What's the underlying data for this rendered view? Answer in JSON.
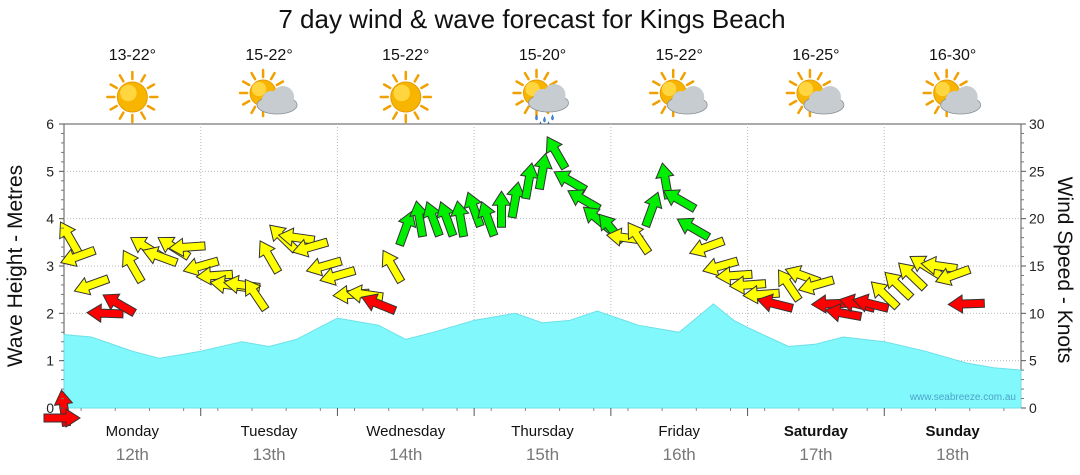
{
  "chart_data": {
    "type": "area",
    "title": "7 day wind & wave forecast for Kings Beach",
    "ylabel_left": "Wave Height - Metres",
    "ylabel_right": "Wind Speed - Knots",
    "ylim_left": [
      0,
      6
    ],
    "ylim_right": [
      0,
      30
    ],
    "yticks_left": [
      "0",
      "1",
      "2",
      "3",
      "4",
      "5",
      "6"
    ],
    "yticks_right": [
      "0",
      "5",
      "10",
      "15",
      "20",
      "25",
      "30"
    ],
    "credit": "www.seabreeze.com.au",
    "days": [
      {
        "name": "Monday",
        "date": "12th",
        "temp": "13-22°",
        "icon": "sunny-icon",
        "bold": false
      },
      {
        "name": "Tuesday",
        "date": "13th",
        "temp": "15-22°",
        "icon": "partly-cloudy-icon",
        "bold": false
      },
      {
        "name": "Wednesday",
        "date": "14th",
        "temp": "15-22°",
        "icon": "sunny-icon",
        "bold": false
      },
      {
        "name": "Thursday",
        "date": "15th",
        "temp": "15-20°",
        "icon": "rain-shower-icon",
        "bold": false
      },
      {
        "name": "Friday",
        "date": "16th",
        "temp": "15-22°",
        "icon": "partly-cloudy-icon",
        "bold": false
      },
      {
        "name": "Saturday",
        "date": "17th",
        "temp": "16-25°",
        "icon": "partly-cloudy-icon",
        "bold": true
      },
      {
        "name": "Sunday",
        "date": "18th",
        "temp": "16-30°",
        "icon": "partly-cloudy-icon",
        "bold": true
      }
    ],
    "colors": {
      "wave_fill": "#80f8fc",
      "low_wind": "#ff0000",
      "mid_wind": "#ffff00",
      "high_wind": "#00ee00",
      "arrow_stroke": "#333333"
    },
    "wave_series": {
      "name": "Wave Height",
      "x_days": [
        0,
        0.2,
        0.5,
        0.7,
        1.0,
        1.3,
        1.5,
        1.7,
        2.0,
        2.3,
        2.5,
        2.7,
        3.0,
        3.3,
        3.5,
        3.7,
        3.9,
        4.2,
        4.5,
        4.75,
        4.9,
        5.0,
        5.3,
        5.5,
        5.7,
        6.0,
        6.3,
        6.6,
        6.8,
        7.0
      ],
      "values": [
        1.55,
        1.5,
        1.2,
        1.05,
        1.2,
        1.4,
        1.3,
        1.45,
        1.9,
        1.75,
        1.45,
        1.6,
        1.85,
        2.0,
        1.8,
        1.85,
        2.05,
        1.75,
        1.6,
        2.2,
        1.85,
        1.7,
        1.3,
        1.35,
        1.5,
        1.4,
        1.2,
        0.95,
        0.85,
        0.8
      ]
    },
    "wind_series": {
      "name": "Wind Speed",
      "points": [
        [
          0.0,
          0
        ],
        [
          0.04,
          18
        ],
        [
          0.1,
          16
        ],
        [
          0.2,
          13
        ],
        [
          0.3,
          10
        ],
        [
          0.4,
          11
        ],
        [
          0.5,
          15
        ],
        [
          0.6,
          17
        ],
        [
          0.7,
          16
        ],
        [
          0.8,
          17
        ],
        [
          0.9,
          17
        ],
        [
          1.0,
          15
        ],
        [
          1.1,
          14
        ],
        [
          1.2,
          13
        ],
        [
          1.3,
          13
        ],
        [
          1.4,
          12
        ],
        [
          1.5,
          16
        ],
        [
          1.6,
          18
        ],
        [
          1.7,
          18
        ],
        [
          1.8,
          17
        ],
        [
          1.9,
          15
        ],
        [
          2.0,
          14
        ],
        [
          2.1,
          12
        ],
        [
          2.2,
          12
        ],
        [
          2.3,
          11
        ],
        [
          2.4,
          15
        ],
        [
          2.5,
          19
        ],
        [
          2.6,
          20
        ],
        [
          2.7,
          20
        ],
        [
          2.8,
          20
        ],
        [
          2.9,
          20
        ],
        [
          3.0,
          21
        ],
        [
          3.1,
          20
        ],
        [
          3.2,
          21
        ],
        [
          3.3,
          22
        ],
        [
          3.4,
          24
        ],
        [
          3.5,
          25
        ],
        [
          3.6,
          27
        ],
        [
          3.7,
          24
        ],
        [
          3.8,
          22
        ],
        [
          3.9,
          20
        ],
        [
          4.0,
          19
        ],
        [
          4.1,
          18
        ],
        [
          4.2,
          18
        ],
        [
          4.3,
          21
        ],
        [
          4.4,
          24
        ],
        [
          4.5,
          22
        ],
        [
          4.6,
          19
        ],
        [
          4.7,
          17
        ],
        [
          4.8,
          15
        ],
        [
          4.9,
          14
        ],
        [
          5.0,
          13
        ],
        [
          5.1,
          12
        ],
        [
          5.2,
          11
        ],
        [
          5.3,
          13
        ],
        [
          5.4,
          14
        ],
        [
          5.5,
          13
        ],
        [
          5.6,
          11
        ],
        [
          5.7,
          10
        ],
        [
          5.8,
          11
        ],
        [
          5.9,
          11
        ],
        [
          6.0,
          12
        ],
        [
          6.1,
          13
        ],
        [
          6.2,
          14
        ],
        [
          6.3,
          15
        ],
        [
          6.4,
          15
        ],
        [
          6.5,
          14
        ],
        [
          6.6,
          11
        ]
      ]
    }
  }
}
